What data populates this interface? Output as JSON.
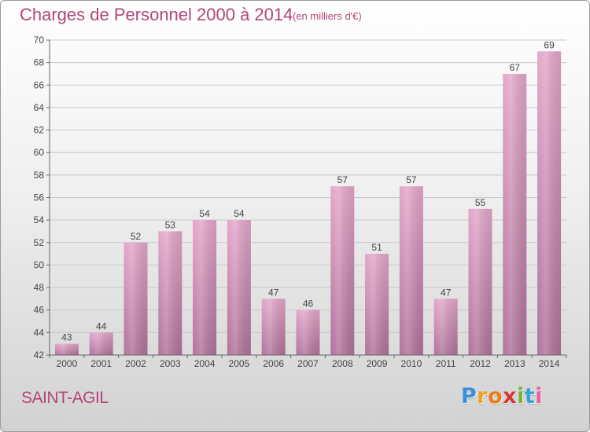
{
  "title": "Charges de Personnel 2000 à 2014",
  "subtitle": "(en milliers d'€)",
  "commune": "SAINT-AGIL",
  "logo": {
    "letters": [
      "P",
      "r",
      "o",
      "x",
      "i",
      "t",
      "i"
    ],
    "icon": "proxiti-logo"
  },
  "colors": {
    "bar_top": "#e4a6ca",
    "bar_bottom": "#b0729a",
    "accent": "#b24577"
  },
  "chart_data": {
    "type": "bar",
    "categories": [
      "2000",
      "2001",
      "2002",
      "2003",
      "2004",
      "2005",
      "2006",
      "2007",
      "2008",
      "2009",
      "2010",
      "2011",
      "2012",
      "2013",
      "2014"
    ],
    "values": [
      43,
      44,
      52,
      53,
      54,
      54,
      47,
      46,
      57,
      51,
      57,
      47,
      55,
      67,
      69
    ],
    "ylim": [
      42,
      70
    ],
    "yticks": [
      42,
      44,
      46,
      48,
      50,
      52,
      54,
      56,
      58,
      60,
      62,
      64,
      66,
      68,
      70
    ],
    "grid": true,
    "data_labels": true,
    "legend": "none"
  }
}
